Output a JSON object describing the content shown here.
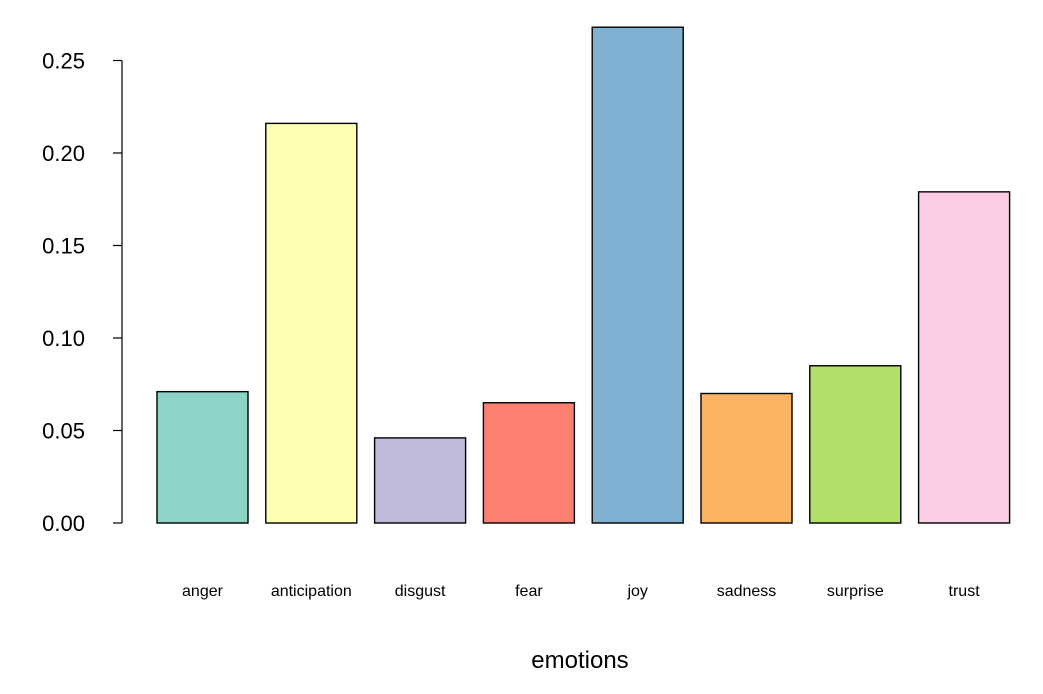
{
  "chart_data": {
    "type": "bar",
    "title": "",
    "xlabel": "emotions",
    "ylabel": "",
    "ylim": [
      0,
      0.25
    ],
    "categories": [
      "anger",
      "anticipation",
      "disgust",
      "fear",
      "joy",
      "sadness",
      "surprise",
      "trust"
    ],
    "values": [
      0.071,
      0.216,
      0.046,
      0.065,
      0.268,
      0.07,
      0.085,
      0.179
    ],
    "colors": [
      "#8DD3C7",
      "#FFFFB3",
      "#BEBADA",
      "#FB8072",
      "#80B1D3",
      "#FDB462",
      "#B3DE69",
      "#FCCDE5"
    ],
    "y_ticks": [
      0.0,
      0.05,
      0.1,
      0.15,
      0.2,
      0.25
    ],
    "y_tick_labels": [
      "0.00",
      "0.05",
      "0.10",
      "0.15",
      "0.20",
      "0.25"
    ],
    "grid": false,
    "legend": "none"
  }
}
